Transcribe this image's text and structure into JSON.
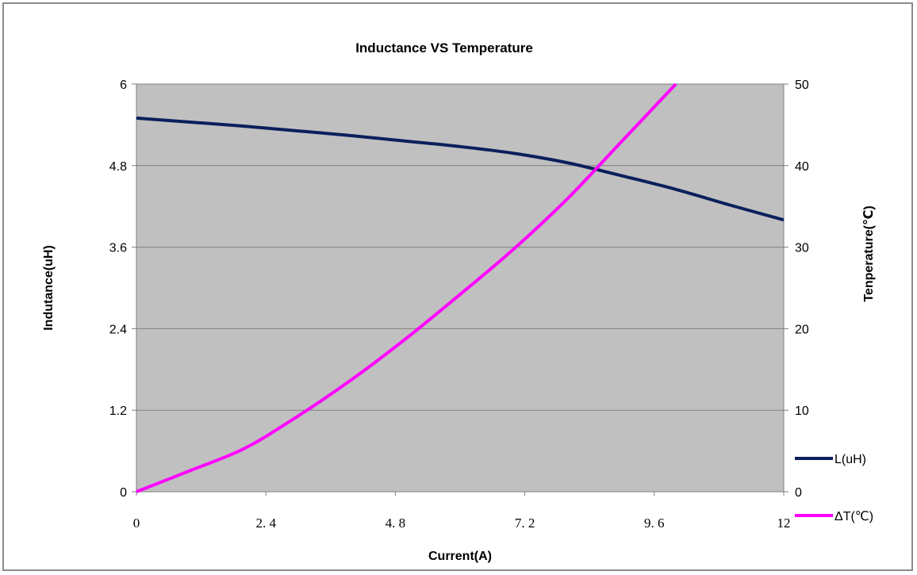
{
  "chart_data": {
    "type": "line",
    "title": "Inductance  VS  Temperature",
    "xlabel": "Current(A)",
    "ylabel_left": "Indutance(uH)",
    "ylabel_right": "Tenperature(℃)",
    "xlim": [
      0,
      12
    ],
    "ylim_left": [
      0,
      6
    ],
    "ylim_right": [
      0,
      50
    ],
    "x_ticks": [
      "0",
      "2. 4",
      "4. 8",
      "7. 2",
      "9. 6",
      "12"
    ],
    "y_left_ticks": [
      "0",
      "1.2",
      "2.4",
      "3.6",
      "4.8",
      "6"
    ],
    "y_right_ticks": [
      "0",
      "10",
      "20",
      "30",
      "40",
      "50"
    ],
    "grid": "horizontal",
    "plot_background": "#c0c0c0",
    "legend_position": "right-bottom",
    "series": [
      {
        "name": "L(uH)",
        "axis": "left",
        "color": "#0b1f5c",
        "x": [
          0,
          1,
          2,
          3,
          4,
          5,
          6,
          7,
          8,
          9,
          10,
          11,
          12
        ],
        "y": [
          5.5,
          5.44,
          5.38,
          5.31,
          5.24,
          5.16,
          5.08,
          4.98,
          4.84,
          4.65,
          4.45,
          4.22,
          4.0
        ]
      },
      {
        "name": "ΔT(℃)",
        "axis": "right",
        "color": "#ff00ff",
        "x": [
          0,
          1,
          2,
          3,
          4,
          5,
          6,
          7,
          8,
          9,
          10
        ],
        "y": [
          0,
          2.6,
          5.3,
          9.3,
          13.8,
          18.8,
          24.2,
          29.8,
          36.0,
          43.0,
          50.0
        ]
      }
    ]
  }
}
